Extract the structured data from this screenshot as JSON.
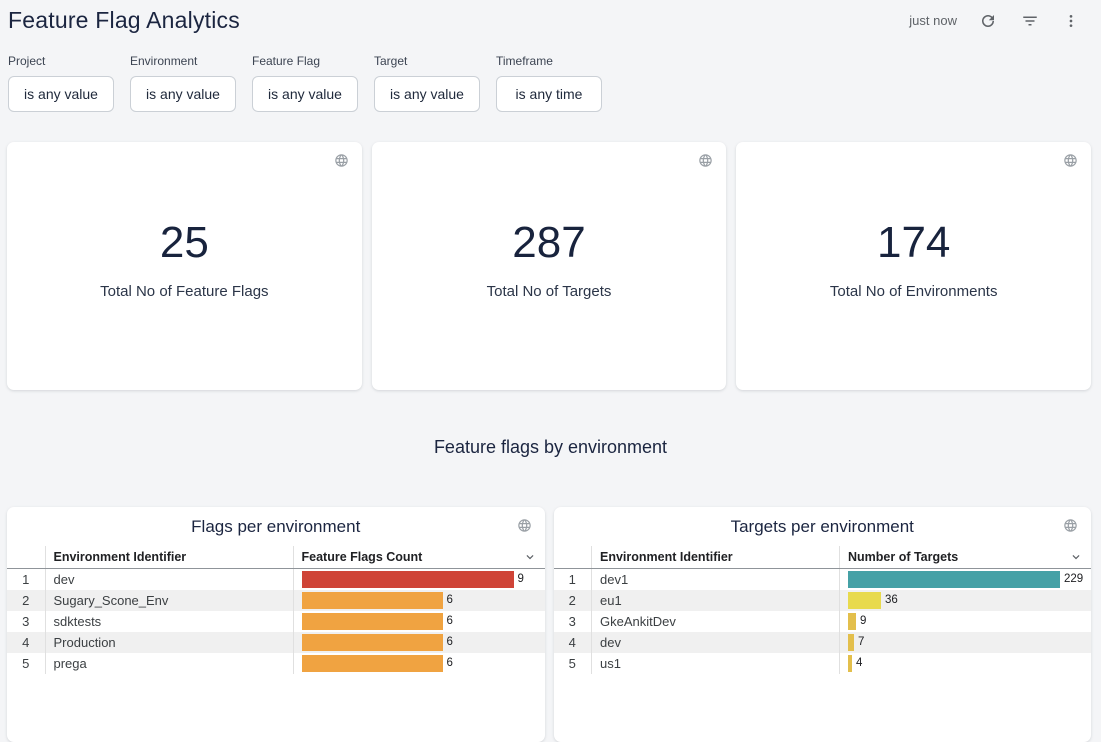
{
  "header": {
    "title": "Feature Flag Analytics",
    "last_refresh": "just now"
  },
  "icons": {
    "refresh": "refresh-icon",
    "filter": "filter-list-icon",
    "menu": "kebab-menu-icon",
    "globe": "globe-icon",
    "sort": "chevron-down-icon"
  },
  "colors": {
    "page_background": "#F4F5F7",
    "navy_text": "#1B2540",
    "icon_gray": "#5F6368",
    "globe_gray": "#9AA0A6",
    "bar_red": "#CF4437",
    "bar_orange": "#F0A341",
    "bar_teal": "#45A1A6",
    "bar_yellow": "#E8DA4D",
    "bar_gold": "#E3BF4C"
  },
  "filters": [
    {
      "label": "Project",
      "value": "is any value"
    },
    {
      "label": "Environment",
      "value": "is any value"
    },
    {
      "label": "Feature Flag",
      "value": "is any value"
    },
    {
      "label": "Target",
      "value": "is any value"
    },
    {
      "label": "Timeframe",
      "value": "is any time"
    }
  ],
  "kpis": [
    {
      "value": "25",
      "label": "Total No of Feature Flags"
    },
    {
      "value": "287",
      "label": "Total No of Targets"
    },
    {
      "value": "174",
      "label": "Total No of Environments"
    }
  ],
  "section_title": "Feature flags by environment",
  "tables": [
    {
      "title": "Flags per environment",
      "columns": [
        "Environment Identifier",
        "Feature Flags Count"
      ],
      "max_value": 9,
      "rows": [
        {
          "index": 1,
          "name": "dev",
          "value": 9,
          "color": "#CF4437"
        },
        {
          "index": 2,
          "name": "Sugary_Scone_Env",
          "value": 6,
          "color": "#F0A341"
        },
        {
          "index": 3,
          "name": "sdktests",
          "value": 6,
          "color": "#F0A341"
        },
        {
          "index": 4,
          "name": "Production",
          "value": 6,
          "color": "#F0A341"
        },
        {
          "index": 5,
          "name": "prega",
          "value": 6,
          "color": "#F0A341"
        }
      ]
    },
    {
      "title": "Targets per environment",
      "columns": [
        "Environment Identifier",
        "Number of Targets"
      ],
      "max_value": 229,
      "rows": [
        {
          "index": 1,
          "name": "dev1",
          "value": 229,
          "color": "#45A1A6"
        },
        {
          "index": 2,
          "name": "eu1",
          "value": 36,
          "color": "#E8DA4D"
        },
        {
          "index": 3,
          "name": "GkeAnkitDev",
          "value": 9,
          "color": "#E3BF4C"
        },
        {
          "index": 4,
          "name": "dev",
          "value": 7,
          "color": "#E3BF4C"
        },
        {
          "index": 5,
          "name": "us1",
          "value": 4,
          "color": "#E3BF4C"
        }
      ]
    }
  ],
  "chart_data": [
    {
      "type": "bar",
      "orientation": "horizontal",
      "title": "Flags per environment",
      "categories": [
        "dev",
        "Sugary_Scone_Env",
        "sdktests",
        "Production",
        "prega"
      ],
      "values": [
        9,
        6,
        6,
        6,
        6
      ],
      "xlabel": "Feature Flags Count",
      "ylabel": "Environment Identifier",
      "xlim": [
        0,
        9
      ],
      "legend": false
    },
    {
      "type": "bar",
      "orientation": "horizontal",
      "title": "Targets per environment",
      "categories": [
        "dev1",
        "eu1",
        "GkeAnkitDev",
        "dev",
        "us1"
      ],
      "values": [
        229,
        36,
        9,
        7,
        4
      ],
      "xlabel": "Number of Targets",
      "ylabel": "Environment Identifier",
      "xlim": [
        0,
        229
      ],
      "legend": false
    }
  ]
}
